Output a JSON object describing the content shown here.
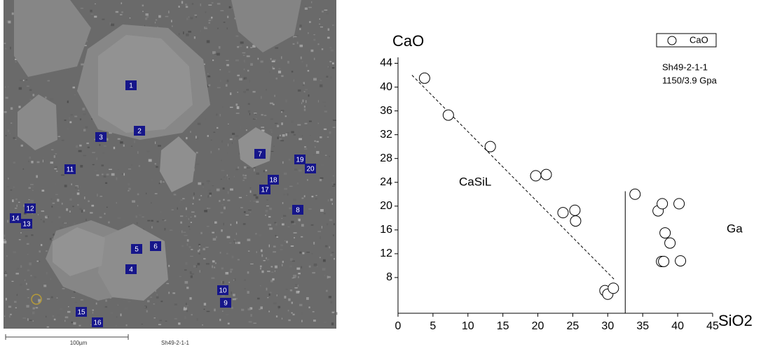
{
  "image": {
    "spot_labels": [
      "1",
      "2",
      "3",
      "4",
      "5",
      "6",
      "7",
      "8",
      "9",
      "10",
      "11",
      "12",
      "13",
      "14",
      "15",
      "16",
      "17",
      "18",
      "19",
      "20"
    ],
    "scale_label": "100µm",
    "sample_label": "Sh49-2-1-1"
  },
  "chart_data": {
    "type": "scatter",
    "x_label": "SiO2",
    "y_label": "CaO",
    "series": [
      {
        "name": "CaO",
        "color": "#000000",
        "x": [
          3.8,
          7.2,
          13.2,
          19.7,
          21.2,
          23.6,
          25.3,
          25.4,
          29.6,
          30.0,
          30.8,
          33.9,
          37.2,
          37.8,
          40.2,
          38.2,
          38.9,
          37.7,
          38.0,
          40.4
        ],
        "values": [
          41.5,
          35.3,
          30.0,
          25.1,
          25.3,
          18.9,
          19.3,
          17.5,
          5.8,
          5.2,
          6.2,
          22.0,
          19.2,
          20.4,
          20.4,
          15.5,
          13.8,
          10.7,
          10.7,
          10.8
        ]
      }
    ],
    "guide_lines": [
      {
        "x": [
          2,
          31
        ],
        "y": [
          42,
          7.6
        ],
        "style": "dashed"
      },
      {
        "x": [
          32.5,
          32.5
        ],
        "y": [
          22.5,
          2
        ],
        "style": "solid"
      }
    ],
    "annotations": [
      "CaSiL",
      "Ga",
      "Sh49-2-1-1",
      "1150/3.9 Gpa"
    ],
    "xlim": [
      0,
      45
    ],
    "xticks": [
      0,
      5,
      10,
      15,
      20,
      25,
      30,
      35,
      40,
      45
    ],
    "ylim": [
      2,
      45
    ],
    "yticks": [
      8,
      12,
      16,
      20,
      24,
      28,
      32,
      36,
      40,
      44
    ],
    "legend": "top-right"
  }
}
